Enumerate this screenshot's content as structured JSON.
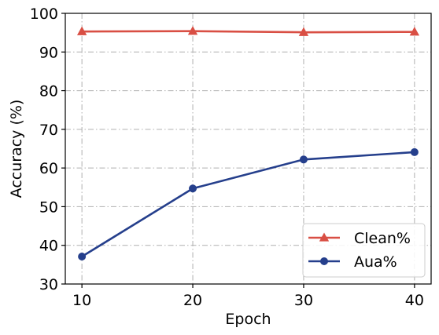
{
  "chart_data": {
    "type": "line",
    "x": [
      10,
      20,
      30,
      40
    ],
    "xlabel": "Epoch",
    "ylabel": "Accuracy (%)",
    "xlim": [
      8.5,
      41.5
    ],
    "ylim": [
      30,
      100
    ],
    "xticks": [
      "10",
      "20",
      "30",
      "40"
    ],
    "yticks": [
      "30",
      "40",
      "50",
      "60",
      "70",
      "80",
      "90",
      "100"
    ],
    "grid": true,
    "legend_position": "lower-right",
    "series": [
      {
        "name": "Clean%",
        "values": [
          95.3,
          95.4,
          95.1,
          95.2
        ],
        "color": "#d94f44",
        "marker": "triangle"
      },
      {
        "name": "Aua%",
        "values": [
          37.1,
          54.7,
          62.2,
          64.1
        ],
        "color": "#253f8c",
        "marker": "circle"
      }
    ]
  }
}
